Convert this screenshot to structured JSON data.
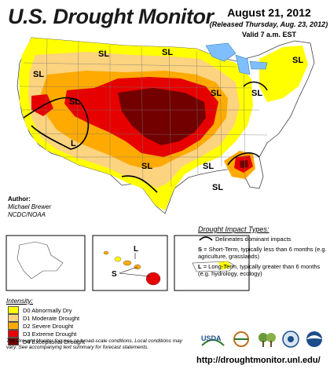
{
  "title": "U.S. Drought Monitor",
  "date": "August 21, 2012",
  "released": "(Released Thursday, Aug. 23, 2012)",
  "valid": "Valid 7 a.m. EST",
  "author": {
    "heading": "Author:",
    "name": "Michael Brewer",
    "org": "NCDC/NOAA"
  },
  "map_labels": {
    "sl": "SL",
    "s": "S",
    "l": "L"
  },
  "impact": {
    "heading": "Drought Impact Types:",
    "delineates": "Delineates dominant impacts",
    "s_key": "S",
    "s_desc": "= Short-Term, typically less than 6 months (e.g. agriculture, grasslands)",
    "l_key": "L",
    "l_desc": "= Long-Term, typically greater than 6 months (e.g. hydrology, ecology)"
  },
  "intensity": {
    "heading": "Intensity:",
    "items": [
      {
        "label": "D0 Abnormally Dry",
        "color": "#ffff00"
      },
      {
        "label": "D1 Moderate Drought",
        "color": "#fcd37f"
      },
      {
        "label": "D2 Severe Drought",
        "color": "#ffaa00"
      },
      {
        "label": "D3 Extreme Drought",
        "color": "#e60000"
      },
      {
        "label": "D4 Exceptional Drought",
        "color": "#730000"
      }
    ]
  },
  "note": "The Drought Monitor focuses on broad-scale conditions. Local conditions may vary. See accompanying text summary for forecast statements.",
  "logos": {
    "usda": "USDA"
  },
  "url": "http://droughtmonitor.unl.edu/"
}
